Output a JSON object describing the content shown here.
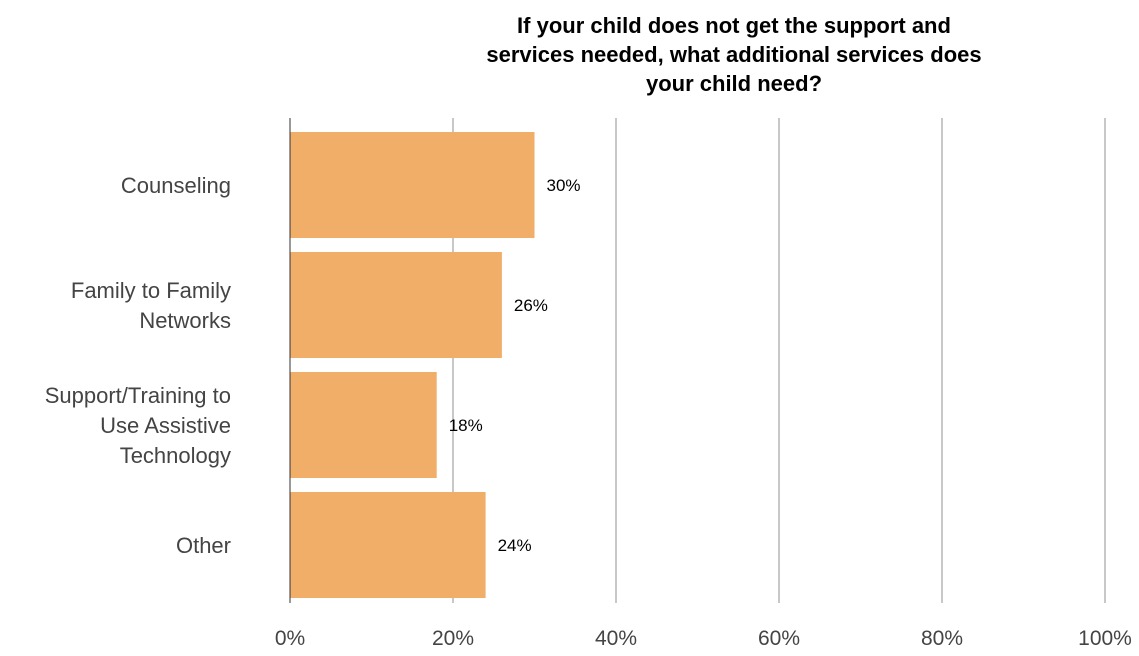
{
  "chart_data": {
    "type": "bar",
    "orientation": "horizontal",
    "title_lines": [
      "If your child does not get the support and",
      "services needed, what additional services does",
      "your child need?"
    ],
    "categories": [
      [
        "Counseling"
      ],
      [
        "Family to Family",
        "Networks"
      ],
      [
        "Support/Training to",
        "Use Assistive",
        "Technology"
      ],
      [
        "Other"
      ]
    ],
    "values": [
      30,
      26,
      18,
      24
    ],
    "data_labels": [
      "30%",
      "26%",
      "18%",
      "24%"
    ],
    "xlim": [
      0,
      100
    ],
    "x_ticks": [
      0,
      20,
      40,
      60,
      80,
      100
    ],
    "x_tick_labels": [
      "0%",
      "20%",
      "40%",
      "60%",
      "80%",
      "100%"
    ],
    "grid": true,
    "legend": "none",
    "bar_color": "#f0ae68",
    "grid_color": "#c8c8c8"
  }
}
